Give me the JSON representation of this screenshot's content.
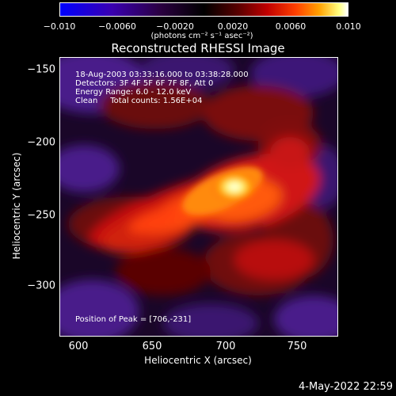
{
  "colorbar": {
    "tick_labels": [
      "−0.010",
      "−0.0060",
      "−0.0020",
      "0.0020",
      "0.0060",
      "0.010"
    ],
    "units": "(photons cm⁻² s⁻¹ asec⁻²)"
  },
  "title": "Reconstructed RHESSI Image",
  "overlay": {
    "time_range": "18-Aug-2003 03:33:16.000 to 03:38:28.000",
    "detectors": "Detectors: 3F 4F 5F 6F 7F 8F, Att 0",
    "energy_range": "Energy Range: 6.0 - 12.0 keV",
    "clean_counts": "Clean     Total counts: 1.56E+04",
    "peak_position": "Position of Peak = [706,-231]"
  },
  "axes": {
    "x_label": "Heliocentric X (arcsec)",
    "y_label": "Heliocentric Y (arcsec)",
    "x_ticks": [
      "600",
      "650",
      "700",
      "750"
    ],
    "y_ticks": [
      "−150",
      "−200",
      "−250",
      "−300"
    ]
  },
  "timestamp": "4-May-2022 22:59"
}
